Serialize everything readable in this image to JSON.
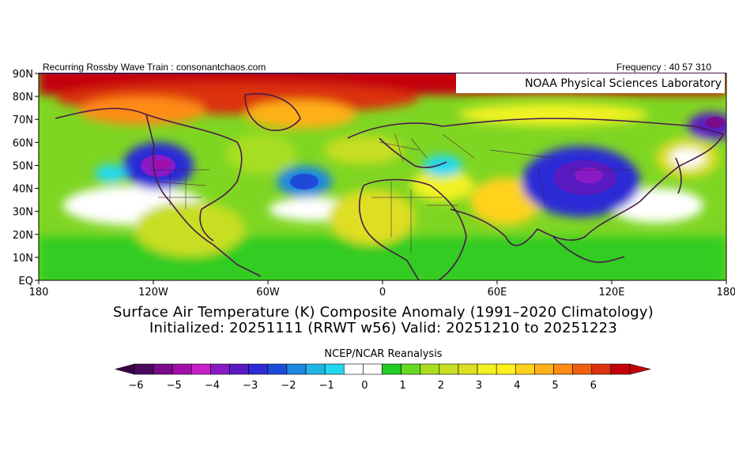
{
  "header": {
    "left_text": "Recurring Rossby Wave Train : consonantchaos.com",
    "right_text": "Frequency : 40 57 310"
  },
  "map": {
    "badge": "NOAA Physical Sciences Laboratory",
    "lat_ticks": [
      "90N",
      "80N",
      "70N",
      "60N",
      "50N",
      "40N",
      "30N",
      "20N",
      "10N",
      "EQ"
    ],
    "lon_ticks": [
      "180",
      "120W",
      "60W",
      "0",
      "60E",
      "120E",
      "180"
    ],
    "anomaly_regions": [
      {
        "name": "arctic-warm",
        "value": 6
      },
      {
        "name": "western-north-america-cold",
        "value": -5
      },
      {
        "name": "north-atlantic-cold",
        "value": -3
      },
      {
        "name": "siberia-mongolia-cold",
        "value": -5
      },
      {
        "name": "northeast-asia-cold",
        "value": -4
      }
    ]
  },
  "title": {
    "line1": "Surface Air Temperature (K) Composite Anomaly (1991–2020 Climatology)",
    "line2": "Initialized: 20251111 (RRWT w56) Valid: 20251210 to 20251223"
  },
  "source": "NCEP/NCAR Reanalysis",
  "colorbar": {
    "ticks": [
      "−6",
      "−5",
      "−4",
      "−3",
      "−2",
      "−1",
      "0",
      "1",
      "2",
      "3",
      "4",
      "5",
      "6"
    ],
    "colors": [
      "#4a0a5e",
      "#7a0b8a",
      "#a20ea8",
      "#c81fc6",
      "#8a19c6",
      "#5a1ac2",
      "#2c2ad6",
      "#1e4ad8",
      "#1e88e0",
      "#20b6e6",
      "#22d8ee",
      "#ffffff",
      "#ffffff",
      "#22cc22",
      "#66d922",
      "#a8de22",
      "#c8de22",
      "#dede22",
      "#f2f222",
      "#fff01e",
      "#ffd21a",
      "#ffb018",
      "#ff8c14",
      "#f06010",
      "#dc320e",
      "#c4000a"
    ]
  }
}
